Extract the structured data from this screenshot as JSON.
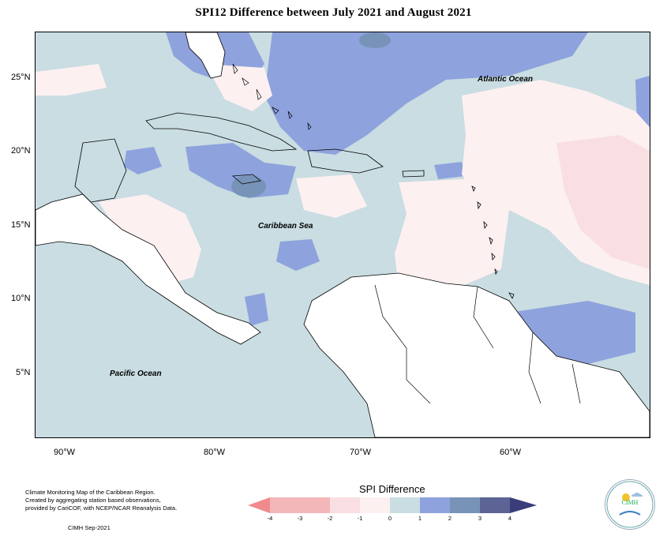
{
  "title": "SPI12 Difference between July 2021 and August 2021",
  "map": {
    "lat_ticks": [
      "25°N",
      "20°N",
      "15°N",
      "10°N",
      "5°N"
    ],
    "lon_ticks": [
      "90°W",
      "80°W",
      "70°W",
      "60°W"
    ],
    "labels": {
      "atlantic": "Atlantic Ocean",
      "caribbean": "Caribbean Sea",
      "pacific": "Pacific Ocean"
    }
  },
  "legend": {
    "title": "SPI Difference",
    "ticks": [
      "-4",
      "-3",
      "-2",
      "-1",
      "0",
      "1",
      "2",
      "3",
      "4"
    ],
    "colors": [
      "#f08a8d",
      "#f3b7b9",
      "#f9dfe1",
      "#fdf0f1",
      "#c9dde2",
      "#8ea2dd",
      "#7893b8",
      "#5b6494"
    ]
  },
  "footer": {
    "line1": "Climate Monitoring Map of the Caribbean Region.",
    "line2": "Created by aggregating station based observations,",
    "line3": "provided by CariCOF, with NCEP/NCAR Reanalysis Data.",
    "credit": "CIMH Sep-2021",
    "logo_text": "CIMH"
  }
}
